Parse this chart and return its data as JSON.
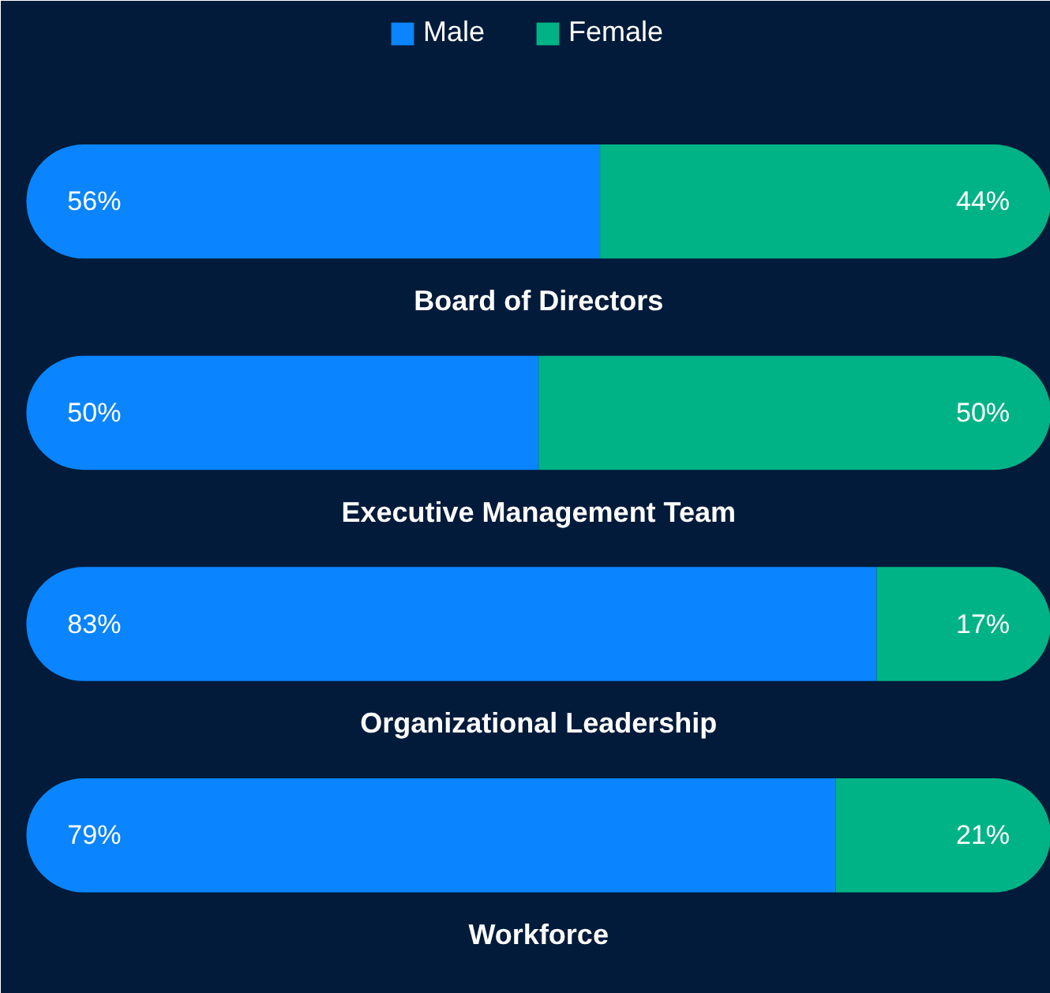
{
  "chart_data": {
    "type": "bar",
    "orientation": "horizontal",
    "stacked": true,
    "legend": "top",
    "categories": [
      "Board of Directors",
      "Executive Management Team",
      "Organizational Leadership",
      "Workforce"
    ],
    "series": [
      {
        "name": "Male",
        "color": "#0a84ff",
        "values": [
          56,
          50,
          83,
          79
        ],
        "value_labels": [
          "56%",
          "50%",
          "83%",
          "79%"
        ]
      },
      {
        "name": "Female",
        "color": "#00b386",
        "values": [
          44,
          50,
          17,
          21
        ],
        "value_labels": [
          "44%",
          "50%",
          "17%",
          "21%"
        ]
      }
    ]
  }
}
